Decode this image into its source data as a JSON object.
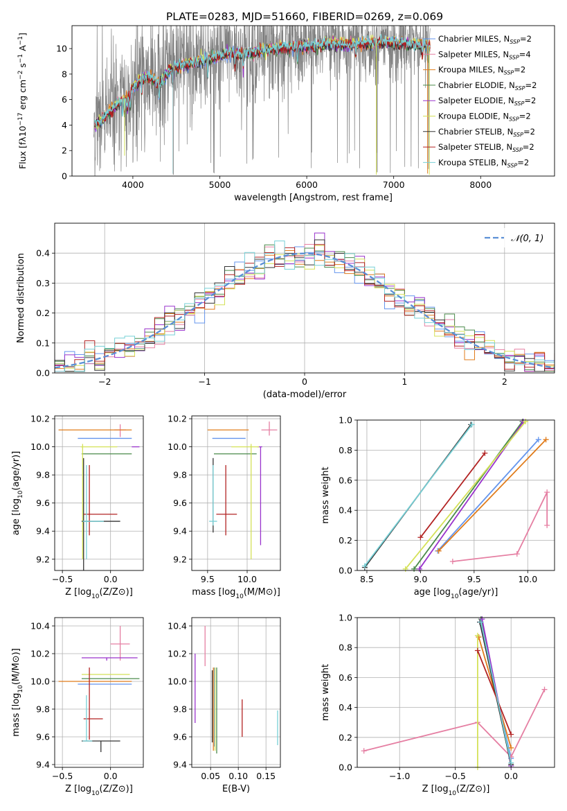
{
  "chart_data": [
    {
      "id": "spectrum",
      "type": "line",
      "title": "PLATE=0283, MJD=51660, FIBERID=0269, z=0.069",
      "xlabel": "wavelength [Angstrom, rest frame]",
      "ylabel": "Flux [fλ10⁻¹⁷ erg cm⁻² s⁻¹ A⁻¹]",
      "xlim": [
        3300,
        8850
      ],
      "ylim": [
        0,
        11.8
      ],
      "xticks": [
        4000,
        5000,
        6000,
        7000,
        8000
      ],
      "yticks": [
        0,
        2,
        4,
        6,
        8,
        10
      ],
      "grid": false,
      "legend_position": "right",
      "observed_spectrum_color": "#808080",
      "legend": [
        {
          "name": "Chabrier MILES, N",
          "sub": "SSP",
          "suffix": "=2",
          "color": "#6495ed"
        },
        {
          "name": "Salpeter MILES, N",
          "sub": "SSP",
          "suffix": "=4",
          "color": "#e57ea2"
        },
        {
          "name": "Kroupa MILES, N",
          "sub": "SSP",
          "suffix": "=2",
          "color": "#e07b1a"
        },
        {
          "name": "Chabrier ELODIE, N",
          "sub": "SSP",
          "suffix": "=2",
          "color": "#4a8a4a"
        },
        {
          "name": "Salpeter ELODIE, N",
          "sub": "SSP",
          "suffix": "=2",
          "color": "#9932cc"
        },
        {
          "name": "Kroupa ELODIE, N",
          "sub": "SSP",
          "suffix": "=2",
          "color": "#d4e157"
        },
        {
          "name": "Chabrier STELIB, N",
          "sub": "SSP",
          "suffix": "=2",
          "color": "#333333"
        },
        {
          "name": "Salpeter STELIB, N",
          "sub": "SSP",
          "suffix": "=2",
          "color": "#b22222"
        },
        {
          "name": "Kroupa STELIB, N",
          "sub": "SSP",
          "suffix": "=2",
          "color": "#76d0d6"
        }
      ],
      "model_continuum": {
        "x": [
          3550,
          3650,
          3750,
          3850,
          3950,
          4000,
          4100,
          4200,
          4300,
          4400,
          4500,
          4700,
          4900,
          5100,
          5300,
          5500,
          5700,
          5900,
          6100,
          6300,
          6500,
          6700,
          6900,
          7100,
          7300,
          7400
        ],
        "y": [
          4.0,
          4.4,
          5.2,
          5.8,
          6.2,
          7.0,
          7.6,
          7.8,
          7.2,
          8.2,
          8.6,
          8.9,
          9.2,
          9.6,
          9.6,
          9.9,
          10.0,
          10.2,
          10.2,
          10.4,
          10.3,
          10.4,
          10.5,
          10.4,
          10.3,
          10.2
        ]
      },
      "absorption_dips_x": [
        3880,
        3905,
        3935,
        3970,
        4102,
        4300,
        4462,
        4861,
        5175,
        5270,
        5893,
        6563,
        6800,
        7330,
        7390
      ]
    },
    {
      "id": "residuals",
      "type": "histogram",
      "xlabel": "(data-model)/error",
      "ylabel": "Normed distribution",
      "xlim": [
        -2.5,
        2.5
      ],
      "ylim": [
        0,
        0.5
      ],
      "xticks": [
        -2,
        -1,
        0,
        1,
        2
      ],
      "yticks": [
        0.0,
        0.1,
        0.2,
        0.3,
        0.4
      ],
      "grid": true,
      "legend_position": "upper right",
      "reference_curve": {
        "label": "𝒩(0, 1)",
        "color": "#5b8fd6",
        "mean": 0,
        "sigma": 1
      },
      "bin_width": 0.1
    },
    {
      "id": "age-vs-Z",
      "type": "errorbar",
      "xlabel": "Z [log₁₀(Z/Z⊙)]",
      "ylabel": "age  [log₁₀(age/yr)]",
      "xlim": [
        -0.58,
        0.34
      ],
      "ylim": [
        9.12,
        10.22
      ],
      "xticks": [
        -0.5,
        0.0
      ],
      "yticks": [
        9.2,
        9.4,
        9.6,
        9.8,
        10.0,
        10.2
      ],
      "grid": true,
      "points": [
        {
          "x": -0.06,
          "y": 10.06,
          "xerr": [
            0.28,
            0.28
          ],
          "yerr": [
            0,
            0
          ],
          "color": "#6495ed"
        },
        {
          "x": 0.1,
          "y": 10.12,
          "xerr": [
            0.06,
            0.06
          ],
          "yerr": [
            0.05,
            0.04
          ],
          "color": "#e57ea2"
        },
        {
          "x": -0.1,
          "y": 10.12,
          "xerr": [
            0.44,
            0.32
          ],
          "yerr": [
            0,
            0
          ],
          "color": "#e07b1a"
        },
        {
          "x": -0.04,
          "y": 9.95,
          "xerr": [
            0.26,
            0.26
          ],
          "yerr": [
            0,
            0
          ],
          "color": "#4a8a4a"
        },
        {
          "x": 0.26,
          "y": 10.0,
          "xerr": [
            0.04,
            0.04
          ],
          "yerr": [
            0,
            0
          ],
          "color": "#9932cc"
        },
        {
          "x": -0.29,
          "y": 10.0,
          "xerr": [
            0.02,
            0.36
          ],
          "yerr": [
            0.8,
            0.02
          ],
          "color": "#d4e157"
        },
        {
          "x": -0.28,
          "y": 9.47,
          "xerr": [
            0.02,
            0.38
          ],
          "yerr": [
            0.48,
            0.45
          ],
          "color": "#333333"
        },
        {
          "x": -0.22,
          "y": 9.52,
          "xerr": [
            0.06,
            0.29
          ],
          "yerr": [
            0.15,
            0.35
          ],
          "color": "#b22222"
        },
        {
          "x": -0.25,
          "y": 9.47,
          "xerr": [
            0.04,
            0.18
          ],
          "yerr": [
            0.27,
            0.4
          ],
          "color": "#76d0d6"
        }
      ]
    },
    {
      "id": "age-vs-mass",
      "type": "errorbar",
      "xlabel": "mass [log₁₀(M/M⊙)]",
      "ylabel": "",
      "xlim": [
        9.3,
        10.42
      ],
      "ylim": [
        9.12,
        10.22
      ],
      "xticks": [
        9.5,
        10.0
      ],
      "yticks": [
        9.2,
        9.4,
        9.6,
        9.8,
        10.0,
        10.2
      ],
      "grid": true,
      "points": [
        {
          "x": 9.98,
          "y": 10.06,
          "xerr": [
            0.42,
            0.0
          ],
          "yerr": [
            0,
            0
          ],
          "color": "#6495ed"
        },
        {
          "x": 10.28,
          "y": 10.12,
          "xerr": [
            0.1,
            0.1
          ],
          "yerr": [
            0.04,
            0.06
          ],
          "color": "#e57ea2"
        },
        {
          "x": 10.0,
          "y": 10.12,
          "xerr": [
            0.5,
            0.02
          ],
          "yerr": [
            0,
            0
          ],
          "color": "#e07b1a"
        },
        {
          "x": 10.0,
          "y": 9.95,
          "xerr": [
            0.42,
            0.12
          ],
          "yerr": [
            0,
            0
          ],
          "color": "#4a8a4a"
        },
        {
          "x": 10.17,
          "y": 10.0,
          "xerr": [
            0.04,
            0.02
          ],
          "yerr": [
            0.7,
            0
          ],
          "color": "#9932cc"
        },
        {
          "x": 10.05,
          "y": 10.0,
          "xerr": [
            0.25,
            0.1
          ],
          "yerr": [
            0.8,
            0.02
          ],
          "color": "#d4e157"
        },
        {
          "x": 9.57,
          "y": 9.47,
          "xerr": [
            0,
            0
          ],
          "yerr": [
            0.08,
            0.45
          ],
          "color": "#333333"
        },
        {
          "x": 9.73,
          "y": 9.52,
          "xerr": [
            0.12,
            0.14
          ],
          "yerr": [
            0.15,
            0.35
          ],
          "color": "#b22222"
        },
        {
          "x": 9.57,
          "y": 9.47,
          "xerr": [
            0.05,
            0.05
          ],
          "yerr": [
            0.03,
            0.4
          ],
          "color": "#76d0d6"
        }
      ]
    },
    {
      "id": "massweight-vs-age",
      "type": "line",
      "xlabel": "age  [log₁₀(age/yr)]",
      "ylabel": "mass weight",
      "xlim": [
        8.41,
        10.25
      ],
      "ylim": [
        0,
        1
      ],
      "xticks": [
        8.5,
        9.0,
        9.5,
        10.0
      ],
      "yticks": [
        0.0,
        0.2,
        0.4,
        0.6,
        0.8,
        1.0
      ],
      "grid": true,
      "series": [
        {
          "color": "#6495ed",
          "x": [
            9.16,
            10.1
          ],
          "y": [
            0.13,
            0.87
          ]
        },
        {
          "color": "#e57ea2",
          "x": [
            9.3,
            9.9,
            10.18,
            10.18
          ],
          "y": [
            0.06,
            0.11,
            0.52,
            0.3
          ]
        },
        {
          "color": "#e07b1a",
          "x": [
            9.17,
            10.17
          ],
          "y": [
            0.13,
            0.87
          ]
        },
        {
          "color": "#4a8a4a",
          "x": [
            8.94,
            9.95
          ],
          "y": [
            0.01,
            0.99
          ]
        },
        {
          "color": "#9932cc",
          "x": [
            8.99,
            9.96
          ],
          "y": [
            0.01,
            0.99
          ]
        },
        {
          "color": "#d4e157",
          "x": [
            8.86,
            9.98
          ],
          "y": [
            0.01,
            0.99
          ]
        },
        {
          "color": "#333333",
          "x": [
            8.48,
            9.47
          ],
          "y": [
            0.02,
            0.97
          ]
        },
        {
          "color": "#b22222",
          "x": [
            9.0,
            9.6
          ],
          "y": [
            0.22,
            0.78
          ]
        },
        {
          "color": "#76d0d6",
          "x": [
            8.48,
            9.48
          ],
          "y": [
            0.03,
            0.97
          ]
        }
      ]
    },
    {
      "id": "mass-vs-Z",
      "type": "errorbar",
      "xlabel": "Z [log₁₀(Z/Z⊙)]",
      "ylabel": "mass [log₁₀(M/M⊙)]",
      "xlim": [
        -0.58,
        0.34
      ],
      "ylim": [
        9.38,
        10.46
      ],
      "xticks": [
        -0.5,
        0.0
      ],
      "yticks": [
        9.4,
        9.6,
        9.8,
        10.0,
        10.2,
        10.4
      ],
      "grid": true,
      "points": [
        {
          "x": -0.06,
          "y": 9.98,
          "xerr": [
            0.28,
            0.28
          ],
          "yerr": [
            0,
            0
          ],
          "color": "#6495ed"
        },
        {
          "x": 0.1,
          "y": 10.27,
          "xerr": [
            0.1,
            0.1
          ],
          "yerr": [
            0.12,
            0.13
          ],
          "color": "#e57ea2"
        },
        {
          "x": -0.1,
          "y": 10.0,
          "xerr": [
            0.44,
            0.32
          ],
          "yerr": [
            0,
            0
          ],
          "color": "#e07b1a"
        },
        {
          "x": -0.04,
          "y": 10.02,
          "xerr": [
            0.26,
            0.34
          ],
          "yerr": [
            0,
            0
          ],
          "color": "#4a8a4a"
        },
        {
          "x": -0.04,
          "y": 10.17,
          "xerr": [
            0.26,
            0.32
          ],
          "yerr": [
            0.02,
            0
          ],
          "color": "#9932cc"
        },
        {
          "x": -0.1,
          "y": 10.05,
          "xerr": [
            0.2,
            0.3
          ],
          "yerr": [
            0,
            0
          ],
          "color": "#d4e157"
        },
        {
          "x": -0.1,
          "y": 9.57,
          "xerr": [
            0.2,
            0.2
          ],
          "yerr": [
            0.08,
            0
          ],
          "color": "#333333"
        },
        {
          "x": -0.22,
          "y": 9.73,
          "xerr": [
            0.06,
            0.14
          ],
          "yerr": [
            0.15,
            0.37
          ],
          "color": "#b22222"
        },
        {
          "x": -0.25,
          "y": 9.57,
          "xerr": [
            0.04,
            0.06
          ],
          "yerr": [
            0,
            0.33
          ],
          "color": "#76d0d6"
        }
      ]
    },
    {
      "id": "mass-vs-EBV",
      "type": "errorbar",
      "xlabel": "E(B-V)",
      "ylabel": "",
      "xlim": [
        0.016,
        0.176
      ],
      "ylim": [
        9.38,
        10.46
      ],
      "xticks": [
        0.05,
        0.1,
        0.15
      ],
      "yticks": [
        9.4,
        9.6,
        9.8,
        10.0,
        10.2,
        10.4
      ],
      "grid": true,
      "points": [
        {
          "x": 0.057,
          "y": 9.98,
          "xerr": [
            0,
            0
          ],
          "yerr": [
            0.45,
            0.12
          ],
          "color": "#6495ed"
        },
        {
          "x": 0.04,
          "y": 10.25,
          "xerr": [
            0,
            0
          ],
          "yerr": [
            0.14,
            0.15
          ],
          "color": "#e57ea2"
        },
        {
          "x": 0.055,
          "y": 9.8,
          "xerr": [
            0,
            0
          ],
          "yerr": [
            0.3,
            0.3
          ],
          "color": "#e07b1a"
        },
        {
          "x": 0.061,
          "y": 9.8,
          "xerr": [
            0,
            0
          ],
          "yerr": [
            0.32,
            0.3
          ],
          "color": "#4a8a4a"
        },
        {
          "x": 0.022,
          "y": 9.95,
          "xerr": [
            0,
            0
          ],
          "yerr": [
            0.25,
            0.25
          ],
          "color": "#9932cc"
        },
        {
          "x": 0.058,
          "y": 9.8,
          "xerr": [
            0,
            0
          ],
          "yerr": [
            0.3,
            0.3
          ],
          "color": "#d4e157"
        },
        {
          "x": 0.053,
          "y": 9.78,
          "xerr": [
            0,
            0
          ],
          "yerr": [
            0.22,
            0.3
          ],
          "color": "#333333"
        },
        {
          "x": 0.107,
          "y": 9.73,
          "xerr": [
            0,
            0
          ],
          "yerr": [
            0.13,
            0.14
          ],
          "color": "#b22222"
        },
        {
          "x": 0.171,
          "y": 9.67,
          "xerr": [
            0,
            0
          ],
          "yerr": [
            0.13,
            0.12
          ],
          "color": "#76d0d6"
        }
      ]
    },
    {
      "id": "massweight-vs-Z",
      "type": "line",
      "xlabel": "Z [log₁₀(Z/Z⊙)]",
      "ylabel": "mass weight",
      "xlim": [
        -1.38,
        0.39
      ],
      "ylim": [
        0,
        1
      ],
      "xticks": [
        -1.0,
        -0.5,
        0.0
      ],
      "yticks": [
        0.0,
        0.2,
        0.4,
        0.6,
        0.8,
        1.0
      ],
      "grid": true,
      "series": [
        {
          "color": "#6495ed",
          "x": [
            -0.28,
            0.0
          ],
          "y": [
            0.97,
            0.06
          ]
        },
        {
          "color": "#e57ea2",
          "x": [
            -1.32,
            -0.3,
            0.0,
            0.3
          ],
          "y": [
            0.11,
            0.3,
            0.07,
            0.52
          ]
        },
        {
          "color": "#e07b1a",
          "x": [
            -0.29,
            0.0
          ],
          "y": [
            0.87,
            0.13
          ]
        },
        {
          "color": "#4a8a4a",
          "x": [
            -0.27,
            0.0
          ],
          "y": [
            0.99,
            0.01
          ]
        },
        {
          "color": "#9932cc",
          "x": [
            -0.26,
            0.0
          ],
          "y": [
            0.99,
            0.01
          ]
        },
        {
          "color": "#d4e157",
          "x": [
            -0.3,
            -0.3
          ],
          "y": [
            0.0,
            0.88
          ]
        },
        {
          "color": "#333333",
          "x": [
            -0.28,
            0.0
          ],
          "y": [
            0.97,
            0.02
          ]
        },
        {
          "color": "#b22222",
          "x": [
            -0.3,
            0.0
          ],
          "y": [
            0.78,
            0.22
          ]
        },
        {
          "color": "#76d0d6",
          "x": [
            -0.27,
            0.0
          ],
          "y": [
            0.97,
            0.03
          ]
        }
      ]
    }
  ]
}
